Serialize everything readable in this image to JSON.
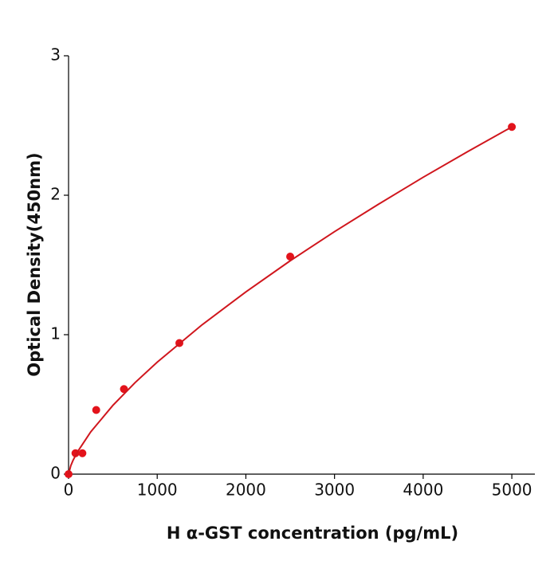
{
  "chart_data": {
    "type": "scatter",
    "x_label": "H  α-GST concentration (pg/mL)",
    "y_label": "Optical Density(450nm)",
    "xlim": [
      0,
      5260
    ],
    "xticks": [
      0,
      1000,
      2000,
      3000,
      4000,
      5000
    ],
    "ylim": [
      0,
      3
    ],
    "yticks": [
      0,
      1,
      2,
      3
    ],
    "series": [
      {
        "mode": "markers",
        "color": "#e3131b",
        "x": [
          0,
          78,
          156,
          312,
          625,
          1250,
          2500,
          5000
        ],
        "values": [
          0,
          0.15,
          0.15,
          0.46,
          0.61,
          0.94,
          1.56,
          2.49
        ]
      },
      {
        "mode": "line",
        "color": "#d0161d",
        "x": [
          0,
          25,
          50,
          100,
          250,
          500,
          750,
          1000,
          1500,
          2000,
          2500,
          3000,
          3500,
          4000,
          4500,
          5000
        ],
        "values": [
          0,
          0.06,
          0.098,
          0.159,
          0.303,
          0.493,
          0.656,
          0.803,
          1.068,
          1.307,
          1.53,
          1.739,
          1.937,
          2.129,
          2.312,
          2.49
        ]
      }
    ]
  }
}
